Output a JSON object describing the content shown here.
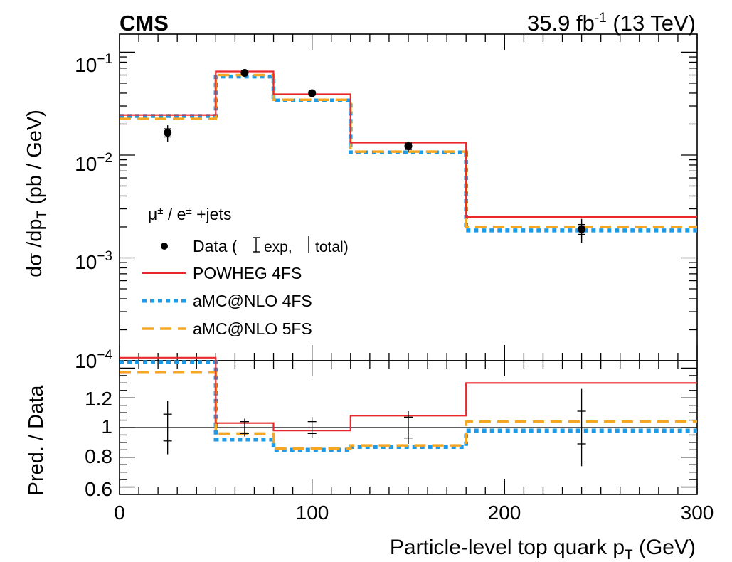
{
  "header": {
    "experiment": "CMS",
    "lumi_value": "35.9 fb",
    "lumi_exponent": "-1",
    "energy": "(13 TeV)"
  },
  "chart_data": [
    {
      "panel": "main",
      "type": "line",
      "y_scale": "log",
      "ylim": [
        0.0001,
        0.15
      ],
      "xlim": [
        0,
        300
      ],
      "ylabel": "dσ /dp_T (pb / GeV)",
      "y_ticks": [
        {
          "value": 0.1,
          "mantissa": "10",
          "exponent": "−1"
        },
        {
          "value": 0.01,
          "mantissa": "10",
          "exponent": "−2"
        },
        {
          "value": 0.001,
          "mantissa": "10",
          "exponent": "−3"
        },
        {
          "value": 0.0001,
          "mantissa": "10",
          "exponent": "−4"
        }
      ],
      "bin_edges": [
        0,
        50,
        80,
        120,
        180,
        300
      ],
      "data": {
        "name": "Data",
        "x": [
          25,
          65,
          100,
          150,
          240
        ],
        "y": [
          0.0165,
          0.063,
          0.04,
          0.0122,
          0.0019
        ],
        "exp_unc_rel": [
          0.09,
          0.04,
          0.04,
          0.07,
          0.11
        ],
        "total_unc_rel": [
          0.18,
          0.06,
          0.07,
          0.11,
          0.26
        ]
      },
      "series": [
        {
          "name": "POWHEG 4FS",
          "color": "#e8282b",
          "style": "solid",
          "values": [
            0.0245,
            0.065,
            0.039,
            0.0132,
            0.0025
          ]
        },
        {
          "name": "aMC@NLO 4FS",
          "color": "#1e9be6",
          "style": "dotted",
          "values": [
            0.024,
            0.058,
            0.034,
            0.0106,
            0.00185
          ]
        },
        {
          "name": "aMC@NLO 5FS",
          "color": "#f5a623",
          "style": "dashed",
          "values": [
            0.0225,
            0.06,
            0.0345,
            0.0108,
            0.002
          ]
        }
      ],
      "legend": {
        "placement": "lower-left",
        "header_base": "μ",
        "header_sup1": "±",
        "header_mid": " / e",
        "header_sup2": "±",
        "header_tail": " +jets",
        "data_label": "Data (",
        "exp_label": "exp,",
        "total_label": "total)"
      }
    },
    {
      "panel": "ratio",
      "type": "line",
      "ylabel": "Pred. / Data",
      "xlabel": "Particle-level top quark p_T (GeV)",
      "ylim": [
        0.55,
        1.45
      ],
      "y_ticks": [
        "0.6",
        "0.8",
        "1",
        "1.2"
      ],
      "x_ticks": [
        "0",
        "100",
        "200",
        "300"
      ],
      "reference": 1.0,
      "data_exp_unc": [
        0.09,
        0.04,
        0.04,
        0.07,
        0.11
      ],
      "data_total_unc": [
        0.18,
        0.06,
        0.07,
        0.11,
        0.26
      ],
      "series": [
        {
          "name": "POWHEG 4FS",
          "values": [
            1.48,
            1.03,
            0.98,
            1.08,
            1.3
          ]
        },
        {
          "name": "aMC@NLO 4FS",
          "values": [
            1.44,
            0.92,
            0.85,
            0.87,
            0.98
          ]
        },
        {
          "name": "aMC@NLO 5FS",
          "values": [
            1.37,
            0.96,
            0.86,
            0.88,
            1.04
          ]
        }
      ]
    }
  ]
}
